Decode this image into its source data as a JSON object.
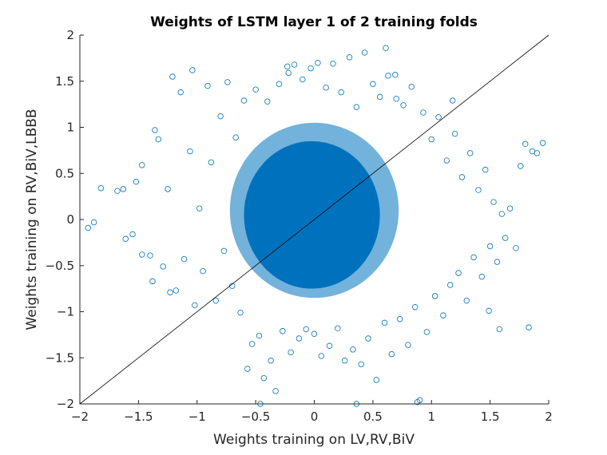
{
  "chart_data": {
    "type": "scatter",
    "title": "Weights of LSTM layer 1 of 2 training folds",
    "xlabel": "Weights training on LV,RV,BiV",
    "ylabel": "Weights training on RV,BiV,LBBB",
    "xlim": [
      -2,
      2
    ],
    "ylim": [
      -2,
      2
    ],
    "xticks": [
      -2,
      -1.5,
      -1,
      -0.5,
      0,
      0.5,
      1,
      1.5,
      2
    ],
    "xtick_labels": [
      "−2",
      "−1.5",
      "−1",
      "−0.5",
      "0",
      "0.5",
      "1",
      "1.5",
      "2"
    ],
    "yticks": [
      -2,
      -1.5,
      -1,
      -0.5,
      0,
      0.5,
      1,
      1.5,
      2
    ],
    "ytick_labels": [
      "−2",
      "−1.5",
      "−1",
      "−0.5",
      "0",
      "0.5",
      "1",
      "1.5",
      "2"
    ],
    "grid": false,
    "marker": "circle",
    "marker_color": "#0072BD",
    "reference_line": {
      "from": [
        -2,
        -2
      ],
      "to": [
        2,
        2
      ],
      "color": "#000000"
    },
    "series": [
      {
        "points": [
          [
            -1.93,
            -0.09
          ],
          [
            -1.88,
            -0.03
          ],
          [
            -1.82,
            0.34
          ],
          [
            -1.68,
            0.31
          ],
          [
            -1.63,
            0.33
          ],
          [
            -1.55,
            -0.16
          ],
          [
            -1.52,
            0.41
          ],
          [
            -1.47,
            0.59
          ],
          [
            -1.4,
            -0.39
          ],
          [
            -1.38,
            -0.67
          ],
          [
            -1.36,
            0.97
          ],
          [
            -1.33,
            0.87
          ],
          [
            -1.29,
            -0.51
          ],
          [
            -1.25,
            0.33
          ],
          [
            -1.21,
            1.55
          ],
          [
            -1.18,
            -0.77
          ],
          [
            -1.14,
            1.38
          ],
          [
            -1.11,
            -0.43
          ],
          [
            -1.06,
            0.74
          ],
          [
            -1.04,
            1.62
          ],
          [
            -1.02,
            -0.93
          ],
          [
            -0.98,
            0.12
          ],
          [
            -0.95,
            -0.56
          ],
          [
            -0.91,
            1.45
          ],
          [
            -0.88,
            0.62
          ],
          [
            -0.84,
            -0.88
          ],
          [
            -0.8,
            1.12
          ],
          [
            -0.77,
            -0.34
          ],
          [
            -0.74,
            1.49
          ],
          [
            -0.7,
            -0.72
          ],
          [
            -0.67,
            0.89
          ],
          [
            -0.63,
            -1.01
          ],
          [
            -0.6,
            1.29
          ],
          [
            -0.57,
            -1.62
          ],
          [
            -0.53,
            -1.35
          ],
          [
            -0.5,
            1.41
          ],
          [
            -0.47,
            -1.26
          ],
          [
            -0.43,
            -1.72
          ],
          [
            -0.4,
            1.28
          ],
          [
            -0.37,
            -1.53
          ],
          [
            -0.33,
            -1.86
          ],
          [
            -0.3,
            1.47
          ],
          [
            -0.27,
            -1.21
          ],
          [
            -0.23,
            1.66
          ],
          [
            -0.2,
            -1.44
          ],
          [
            -0.17,
            1.68
          ],
          [
            -0.13,
            -1.29
          ],
          [
            -0.1,
            1.52
          ],
          [
            -0.07,
            -1.19
          ],
          [
            -0.03,
            1.64
          ],
          [
            0.0,
            -1.24
          ],
          [
            0.03,
            1.7
          ],
          [
            0.06,
            -1.48
          ],
          [
            0.1,
            1.43
          ],
          [
            0.13,
            -1.37
          ],
          [
            0.16,
            1.69
          ],
          [
            0.2,
            -1.18
          ],
          [
            0.23,
            1.38
          ],
          [
            0.26,
            -1.53
          ],
          [
            0.3,
            1.76
          ],
          [
            0.33,
            -1.41
          ],
          [
            0.36,
            1.22
          ],
          [
            0.4,
            -1.57
          ],
          [
            0.43,
            1.81
          ],
          [
            0.46,
            -1.29
          ],
          [
            0.5,
            1.47
          ],
          [
            0.53,
            -1.74
          ],
          [
            0.56,
            1.33
          ],
          [
            0.6,
            -1.12
          ],
          [
            0.63,
            1.56
          ],
          [
            0.66,
            -1.46
          ],
          [
            0.7,
            1.31
          ],
          [
            0.73,
            -1.08
          ],
          [
            0.76,
            1.24
          ],
          [
            0.8,
            -1.36
          ],
          [
            0.83,
            1.44
          ],
          [
            0.86,
            -0.95
          ],
          [
            0.9,
            -1.96
          ],
          [
            0.93,
            1.16
          ],
          [
            0.96,
            -1.22
          ],
          [
            1.0,
            0.87
          ],
          [
            1.03,
            -0.83
          ],
          [
            1.06,
            1.11
          ],
          [
            1.1,
            -1.04
          ],
          [
            1.13,
            0.64
          ],
          [
            1.16,
            -0.71
          ],
          [
            1.2,
            0.93
          ],
          [
            1.23,
            -0.58
          ],
          [
            1.26,
            0.46
          ],
          [
            1.3,
            -0.88
          ],
          [
            1.33,
            0.72
          ],
          [
            1.36,
            -0.41
          ],
          [
            1.4,
            0.32
          ],
          [
            1.43,
            -0.62
          ],
          [
            1.46,
            0.54
          ],
          [
            1.5,
            -0.29
          ],
          [
            1.53,
            0.19
          ],
          [
            1.56,
            -0.46
          ],
          [
            1.6,
            0.06
          ],
          [
            1.63,
            -0.2
          ],
          [
            1.67,
            0.12
          ],
          [
            1.72,
            -0.31
          ],
          [
            1.76,
            0.58
          ],
          [
            1.8,
            0.82
          ],
          [
            1.83,
            -1.17
          ],
          [
            1.86,
            0.74
          ],
          [
            1.9,
            0.72
          ],
          [
            1.95,
            0.83
          ],
          [
            1.58,
            -1.19
          ],
          [
            1.49,
            -0.99
          ],
          [
            -0.46,
            -2.0
          ],
          [
            0.36,
            -2.0
          ],
          [
            0.88,
            -1.98
          ],
          [
            -1.23,
            -0.79
          ],
          [
            1.18,
            1.29
          ],
          [
            0.61,
            1.86
          ],
          [
            0.69,
            1.57
          ],
          [
            -0.22,
            1.59
          ],
          [
            -1.61,
            -0.21
          ],
          [
            -1.47,
            -0.38
          ]
        ]
      }
    ]
  }
}
